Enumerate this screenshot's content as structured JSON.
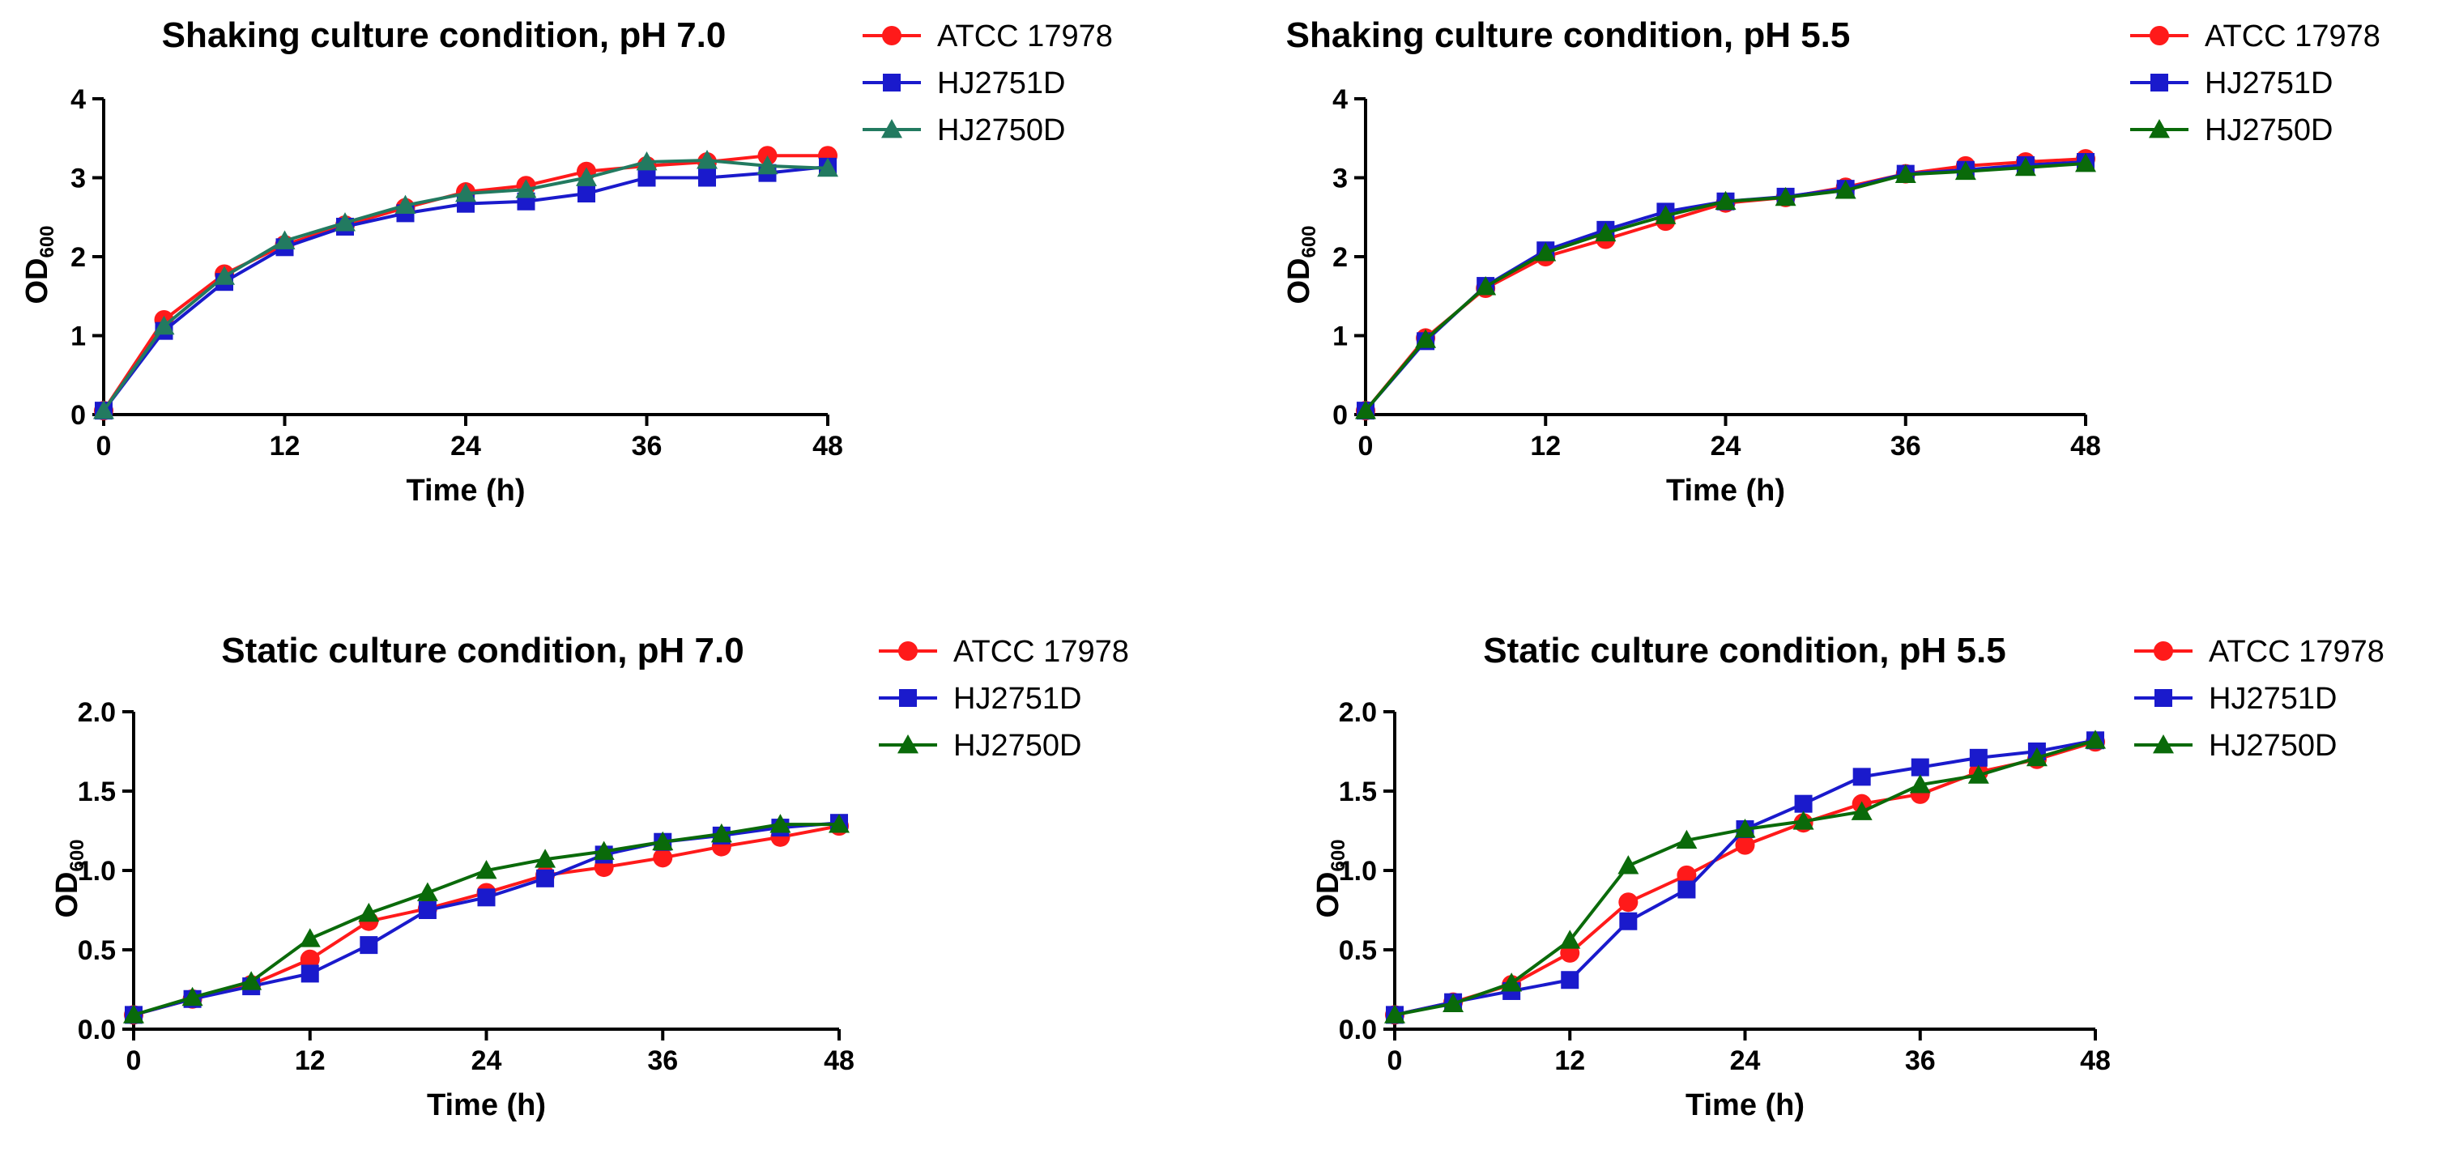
{
  "colors": {
    "ATCC 17978": "#ff1a1a",
    "HJ2751D": "#1a1acc",
    "HJ2750D_teal": "#227a60",
    "HJ2750D_green": "#0a6a0a"
  },
  "chart_data": [
    {
      "type": "line",
      "title": "Shaking culture condition, pH 7.0",
      "xlabel": "Time (h)",
      "ylabel": "OD",
      "ylabel_sub": "600",
      "xlim": [
        0,
        48
      ],
      "ylim": [
        0,
        4
      ],
      "xticks": [
        "0",
        "12",
        "24",
        "36",
        "48"
      ],
      "xtick_values": [
        0,
        12,
        24,
        36,
        48
      ],
      "yticks": [
        "0",
        "1",
        "2",
        "3",
        "4"
      ],
      "ytick_values": [
        0,
        1,
        2,
        3,
        4
      ],
      "x": [
        0,
        4,
        8,
        12,
        16,
        20,
        24,
        28,
        32,
        36,
        40,
        44,
        48
      ],
      "series": [
        {
          "name": "ATCC 17978",
          "marker": "circle",
          "color": "#ff1a1a",
          "values": [
            0.05,
            1.2,
            1.78,
            2.15,
            2.4,
            2.62,
            2.82,
            2.9,
            3.08,
            3.15,
            3.2,
            3.28,
            3.28
          ]
        },
        {
          "name": "HJ2751D",
          "marker": "square",
          "color": "#1a1acc",
          "values": [
            0.05,
            1.06,
            1.68,
            2.12,
            2.38,
            2.55,
            2.67,
            2.7,
            2.8,
            3.0,
            3.0,
            3.06,
            3.14
          ]
        },
        {
          "name": "HJ2750D",
          "marker": "triangle",
          "color": "#227a60",
          "values": [
            0.05,
            1.12,
            1.75,
            2.2,
            2.43,
            2.65,
            2.8,
            2.85,
            3.0,
            3.2,
            3.22,
            3.15,
            3.12
          ]
        }
      ]
    },
    {
      "type": "line",
      "title": "Shaking culture condition, pH 5.5",
      "xlabel": "Time (h)",
      "ylabel": "OD",
      "ylabel_sub": "600",
      "xlim": [
        0,
        48
      ],
      "ylim": [
        0,
        4
      ],
      "xticks": [
        "0",
        "12",
        "24",
        "36",
        "48"
      ],
      "xtick_values": [
        0,
        12,
        24,
        36,
        48
      ],
      "yticks": [
        "0",
        "1",
        "2",
        "3",
        "4"
      ],
      "ytick_values": [
        0,
        1,
        2,
        3,
        4
      ],
      "x": [
        0,
        4,
        8,
        12,
        16,
        20,
        24,
        28,
        32,
        36,
        40,
        44,
        48
      ],
      "series": [
        {
          "name": "ATCC 17978",
          "marker": "circle",
          "color": "#ff1a1a",
          "values": [
            0.05,
            0.97,
            1.6,
            2.0,
            2.22,
            2.45,
            2.68,
            2.75,
            2.88,
            3.05,
            3.15,
            3.2,
            3.24
          ]
        },
        {
          "name": "HJ2751D",
          "marker": "square",
          "color": "#1a1acc",
          "values": [
            0.05,
            0.93,
            1.63,
            2.08,
            2.34,
            2.57,
            2.7,
            2.76,
            2.86,
            3.05,
            3.1,
            3.16,
            3.2
          ]
        },
        {
          "name": "HJ2750D",
          "marker": "triangle",
          "color": "#0a6a0a",
          "values": [
            0.05,
            0.95,
            1.62,
            2.05,
            2.3,
            2.52,
            2.7,
            2.75,
            2.84,
            3.04,
            3.08,
            3.13,
            3.18
          ]
        }
      ]
    },
    {
      "type": "line",
      "title": "Static culture condition, pH 7.0",
      "xlabel": "Time (h)",
      "ylabel": "OD",
      "ylabel_sub": "600",
      "xlim": [
        0,
        48
      ],
      "ylim": [
        0,
        2
      ],
      "xticks": [
        "0",
        "12",
        "24",
        "36",
        "48"
      ],
      "xtick_values": [
        0,
        12,
        24,
        36,
        48
      ],
      "yticks": [
        "0.0",
        "0.5",
        "1.0",
        "1.5",
        "2.0"
      ],
      "ytick_values": [
        0,
        0.5,
        1,
        1.5,
        2
      ],
      "x": [
        0,
        4,
        8,
        12,
        16,
        20,
        24,
        28,
        32,
        36,
        40,
        44,
        48
      ],
      "series": [
        {
          "name": "ATCC 17978",
          "marker": "circle",
          "color": "#ff1a1a",
          "values": [
            0.09,
            0.19,
            0.28,
            0.44,
            0.68,
            0.76,
            0.86,
            0.97,
            1.02,
            1.08,
            1.15,
            1.21,
            1.28
          ]
        },
        {
          "name": "HJ2751D",
          "marker": "square",
          "color": "#1a1acc",
          "values": [
            0.09,
            0.19,
            0.27,
            0.35,
            0.53,
            0.75,
            0.83,
            0.95,
            1.1,
            1.18,
            1.22,
            1.27,
            1.3
          ]
        },
        {
          "name": "HJ2750D",
          "marker": "triangle",
          "color": "#0a6a0a",
          "values": [
            0.09,
            0.2,
            0.3,
            0.57,
            0.73,
            0.86,
            1.0,
            1.07,
            1.12,
            1.18,
            1.23,
            1.29,
            1.29
          ]
        }
      ]
    },
    {
      "type": "line",
      "title": "Static culture condition, pH 5.5",
      "xlabel": "Time (h)",
      "ylabel": "OD",
      "ylabel_sub": "600",
      "xlim": [
        0,
        48
      ],
      "ylim": [
        0,
        2
      ],
      "xticks": [
        "0",
        "12",
        "24",
        "36",
        "48"
      ],
      "xtick_values": [
        0,
        12,
        24,
        36,
        48
      ],
      "yticks": [
        "0.0",
        "0.5",
        "1.0",
        "1.5",
        "2.0"
      ],
      "ytick_values": [
        0,
        0.5,
        1,
        1.5,
        2
      ],
      "x": [
        0,
        4,
        8,
        12,
        16,
        20,
        24,
        28,
        32,
        36,
        40,
        44,
        48
      ],
      "series": [
        {
          "name": "ATCC 17978",
          "marker": "circle",
          "color": "#ff1a1a",
          "values": [
            0.09,
            0.17,
            0.28,
            0.48,
            0.8,
            0.97,
            1.16,
            1.3,
            1.42,
            1.48,
            1.62,
            1.7,
            1.81
          ]
        },
        {
          "name": "HJ2751D",
          "marker": "square",
          "color": "#1a1acc",
          "values": [
            0.09,
            0.17,
            0.24,
            0.31,
            0.68,
            0.88,
            1.26,
            1.42,
            1.59,
            1.65,
            1.71,
            1.75,
            1.82
          ]
        },
        {
          "name": "HJ2750D",
          "marker": "triangle",
          "color": "#0a6a0a",
          "values": [
            0.09,
            0.16,
            0.29,
            0.56,
            1.03,
            1.19,
            1.26,
            1.31,
            1.37,
            1.54,
            1.6,
            1.71,
            1.82
          ]
        }
      ]
    }
  ]
}
